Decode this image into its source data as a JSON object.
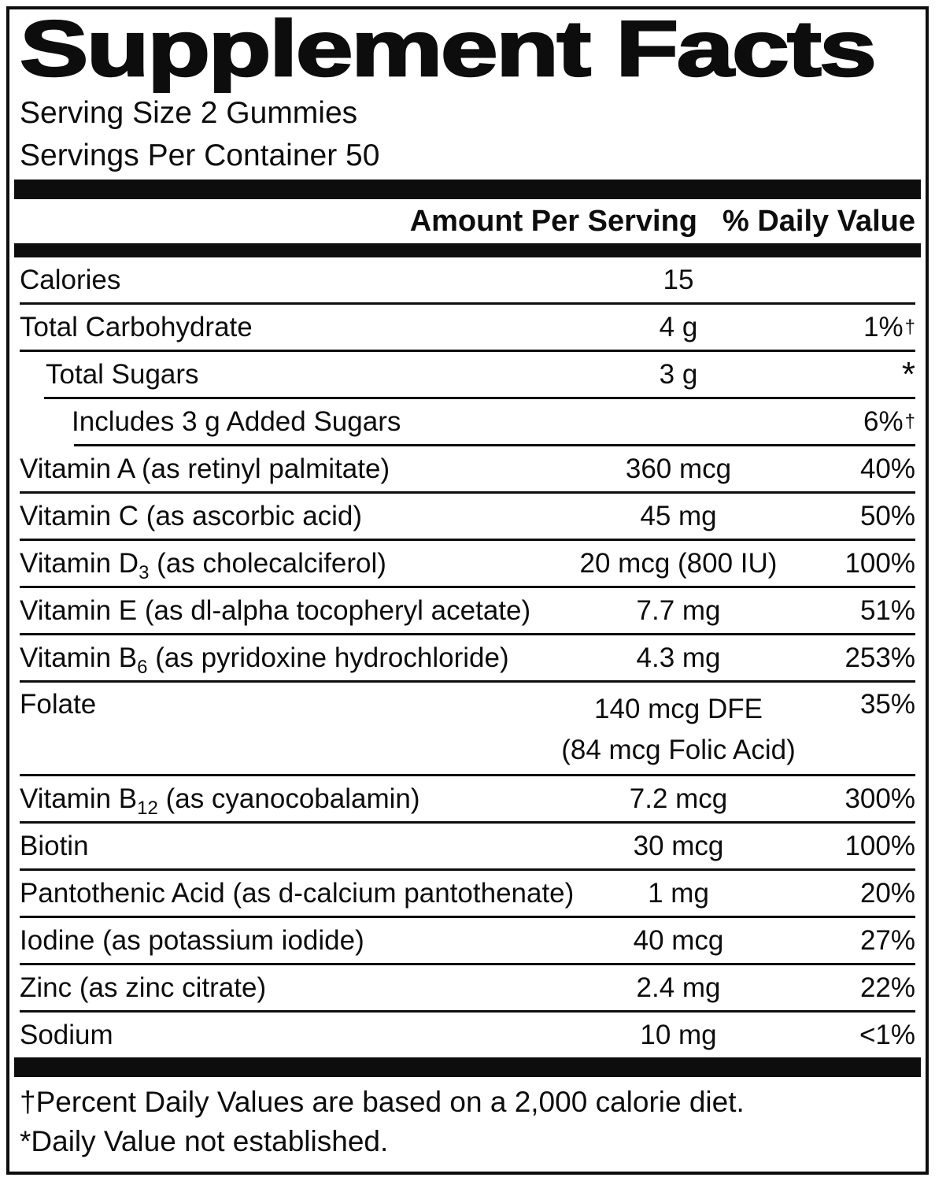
{
  "colors": {
    "ink": "#0d0d0d",
    "background": "#ffffff"
  },
  "title": "Supplement Facts",
  "serving": {
    "size_line": "Serving Size 2 Gummies",
    "per_container_line": "Servings Per Container 50"
  },
  "header": {
    "amount": "Amount Per Serving",
    "daily_value": "% Daily Value"
  },
  "rows": [
    {
      "name": "Calories",
      "amount": "15",
      "dv": ""
    },
    {
      "name": "Total Carbohydrate",
      "amount": "4 g",
      "dv": "1%",
      "dv_mark": "†"
    },
    {
      "name": "Total Sugars",
      "amount": "3 g",
      "dv": "*"
    },
    {
      "name": "Includes 3 g Added Sugars",
      "amount": "",
      "dv": "6%",
      "dv_mark": "†"
    },
    {
      "name": "Vitamin A (as retinyl palmitate)",
      "amount": "360 mcg",
      "dv": "40%"
    },
    {
      "name": "Vitamin C (as ascorbic acid)",
      "amount": "45 mg",
      "dv": "50%"
    },
    {
      "name_pre": "Vitamin D",
      "name_sub": "3",
      "name_post": " (as cholecalciferol)",
      "amount": "20 mcg (800 IU)",
      "dv": "100%"
    },
    {
      "name": "Vitamin E (as dl-alpha tocopheryl acetate)",
      "amount": "7.7 mg",
      "dv": "51%"
    },
    {
      "name_pre": "Vitamin B",
      "name_sub": "6",
      "name_post": " (as pyridoxine hydrochloride)",
      "amount": "4.3 mg",
      "dv": "253%"
    },
    {
      "name": "Folate",
      "amount": "140 mcg DFE",
      "amount_line2": "(84 mcg Folic Acid)",
      "dv": "35%"
    },
    {
      "name_pre": "Vitamin B",
      "name_sub": "12",
      "name_post": " (as cyanocobalamin)",
      "amount": "7.2 mcg",
      "dv": "300%"
    },
    {
      "name": "Biotin",
      "amount": "30 mcg",
      "dv": "100%"
    },
    {
      "name": "Pantothenic Acid (as d-calcium pantothenate)",
      "amount": "1 mg",
      "dv": "20%"
    },
    {
      "name": "Iodine (as potassium iodide)",
      "amount": "40 mcg",
      "dv": "27%"
    },
    {
      "name": "Zinc (as zinc citrate)",
      "amount": "2.4 mg",
      "dv": "22%"
    },
    {
      "name": "Sodium",
      "amount": "10 mg",
      "dv": "<1%"
    }
  ],
  "footnotes": {
    "dagger_note": "†Percent Daily Values are based on a 2,000 calorie diet.",
    "asterisk_note": "*Daily Value not established."
  }
}
